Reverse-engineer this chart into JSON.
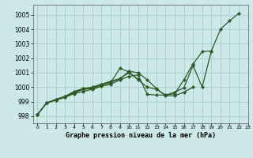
{
  "title": "Graphe pression niveau de la mer (hPa)",
  "xlim": [
    -0.5,
    23
  ],
  "ylim": [
    997.5,
    1005.7
  ],
  "yticks": [
    998,
    999,
    1000,
    1001,
    1002,
    1003,
    1004,
    1005
  ],
  "xticks": [
    0,
    1,
    2,
    3,
    4,
    5,
    6,
    7,
    8,
    9,
    10,
    11,
    12,
    13,
    14,
    15,
    16,
    17,
    18,
    19,
    20,
    21,
    22,
    23
  ],
  "bg_color": "#cce8e8",
  "grid_color": "#aacccc",
  "line_color": "#2d5a27",
  "series": [
    {
      "x": [
        0,
        1,
        2,
        3,
        4,
        5,
        6,
        7,
        8,
        9,
        10,
        11,
        12,
        13,
        14,
        15,
        16,
        17,
        18,
        19,
        20,
        21,
        22
      ],
      "y": [
        998.1,
        998.9,
        999.1,
        999.3,
        999.55,
        999.7,
        999.85,
        1000.05,
        1000.2,
        1000.5,
        1000.75,
        1000.85,
        999.5,
        999.45,
        999.45,
        999.65,
        999.95,
        1001.5,
        1000.0,
        1002.5,
        1004.0,
        1004.6,
        1005.1
      ]
    },
    {
      "x": [
        0,
        1,
        2,
        3,
        4,
        5,
        6,
        7,
        8,
        9,
        10,
        11,
        12,
        13,
        14,
        15,
        16,
        17,
        18,
        19
      ],
      "y": [
        998.1,
        998.9,
        999.1,
        999.3,
        999.6,
        999.85,
        999.9,
        1000.15,
        1000.3,
        1001.3,
        1001.05,
        1000.5,
        1000.0,
        999.85,
        999.45,
        999.55,
        1000.5,
        1001.6,
        1002.45,
        1002.5
      ]
    },
    {
      "x": [
        0,
        1,
        2,
        3,
        4,
        5,
        6,
        7,
        8,
        9,
        10,
        11,
        12,
        13,
        14,
        15,
        16,
        17
      ],
      "y": [
        998.1,
        998.9,
        999.15,
        999.35,
        999.65,
        999.9,
        1000.0,
        1000.2,
        1000.35,
        1000.55,
        1001.1,
        1001.0,
        1000.5,
        999.9,
        999.4,
        999.4,
        999.65,
        1000.0
      ]
    },
    {
      "x": [
        0,
        1,
        2,
        3,
        4,
        5,
        6,
        7,
        8,
        9,
        10,
        11
      ],
      "y": [
        998.1,
        998.9,
        999.15,
        999.35,
        999.7,
        999.9,
        999.95,
        1000.2,
        1000.4,
        1000.6,
        1001.0,
        1000.55
      ]
    }
  ]
}
